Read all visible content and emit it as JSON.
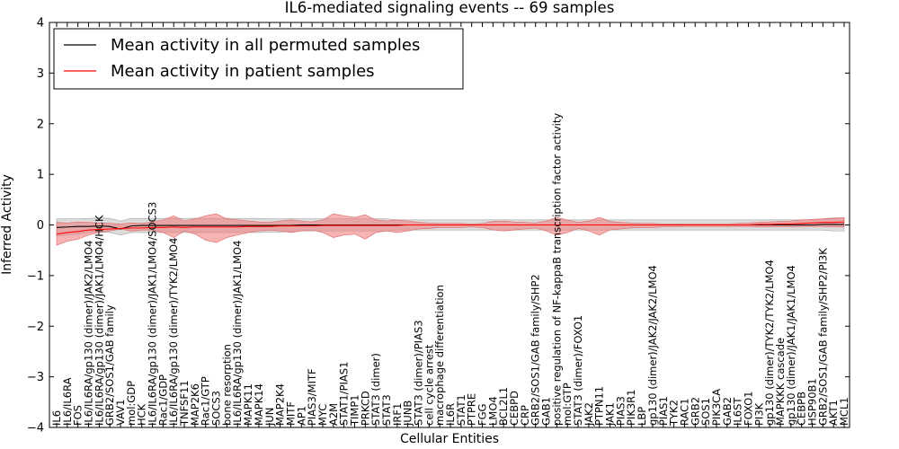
{
  "chart_data": {
    "type": "line",
    "title": "IL6-mediated signaling events -- 69 samples",
    "xlabel": "Cellular Entities",
    "ylabel": "Inferred Activity",
    "ylim": [
      -4,
      4
    ],
    "yticks": [
      -4,
      -3,
      -2,
      -1,
      0,
      1,
      2,
      3,
      4
    ],
    "grid": false,
    "legend_position": "top-left",
    "legend": [
      {
        "label": "Mean activity in all permuted samples",
        "color": "#000000"
      },
      {
        "label": "Mean activity in patient samples",
        "color": "#ff0000"
      }
    ],
    "colors": {
      "permuted_line": "#000000",
      "patient_line": "#ff0000",
      "permuted_band": "#bdbdbd",
      "patient_band": "#f08080"
    },
    "categories": [
      "IL6",
      "IL6/IL6RA",
      "FOS",
      "IL6/IL6RA/gp130 (dimer)/JAK2/LMO4",
      "IL6/IL6RA/gp130 (dimer)/JAK1/LMO4/HCK",
      "GRB2/SOS1/GAB family",
      "VAV1",
      "mol:GDP",
      "HCK",
      "IL6/IL6RA/gp130 (dimer)/JAK1/LMO4/SOCS3",
      "Rac1/GDP",
      "IL6/IL6RA/gp130 (dimer)/TYK2/LMO4",
      "TNFSF11",
      "MAP2K6",
      "Rac1/GTP",
      "SOCS3",
      "bone resorption",
      "IL6/IL6RA/gp130 (dimer)/JAK1/LMO4",
      "MAPK11",
      "MAPK14",
      "JUN",
      "MAP2K4",
      "MITF",
      "AP1",
      "PIAS3/MITF",
      "MYC",
      "A2M",
      "STAT1/PIAS1",
      "TIMP1",
      "PRKCD",
      "STAT3 (dimer)",
      "STAT3",
      "IRF1",
      "JUNB",
      "STAT3 (dimer)/PIAS3",
      "cell cycle arrest",
      "macrophage differentiation",
      "IL6R",
      "STAT1",
      "PTPRE",
      "FGG",
      "LMO4",
      "BCL2L1",
      "CEBPD",
      "CRP",
      "GRB2/SOS1/GAB family/SHP2",
      "GAB1",
      "positive regulation of NF-kappaB transcription factor activity",
      "mol:GTP",
      "STAT3 (dimer)/FOXO1",
      "JAK2",
      "PTPN11",
      "JAK1",
      "PIAS3",
      "PIK3R1",
      "LBP",
      "gp130 (dimer)/JAK2/JAK2/LMO4",
      "PIAS1",
      "TYK2",
      "RAC1",
      "GRB2",
      "SOS1",
      "PIK3CA",
      "GAB2",
      "IL6ST",
      "FOXO1",
      "PI3K",
      "gp130 (dimer)/TYK2/TYK2/LMO4",
      "MAPKKK cascade",
      "gp130 (dimer)/JAK1/JAK1/LMO4",
      "CEBPB",
      "HSP90B1",
      "GRB2/SOS1/GAB family/SHP2/PI3K",
      "AKT1",
      "MCL1"
    ],
    "series": [
      {
        "name": "Mean activity in all permuted samples",
        "values": [
          -0.05,
          -0.04,
          -0.03,
          -0.03,
          -0.02,
          -0.03,
          -0.08,
          -0.02,
          -0.01,
          -0.01,
          -0.01,
          -0.01,
          -0.01,
          -0.01,
          -0.01,
          -0.01,
          -0.01,
          -0.01,
          -0.01,
          -0.01,
          -0.01,
          -0.01,
          -0.01,
          0.0,
          0.0,
          0.0,
          0.0,
          0.0,
          0.0,
          0.0,
          0.0,
          0.0,
          0.0,
          0.0,
          0.0,
          0.0,
          0.0,
          0.0,
          0.0,
          0.0,
          0.0,
          0.0,
          0.0,
          0.0,
          0.0,
          0.0,
          0.0,
          0.0,
          0.0,
          0.0,
          0.0,
          0.0,
          0.0,
          0.0,
          0.0,
          0.0,
          0.0,
          0.0,
          0.0,
          0.0,
          0.0,
          0.0,
          0.0,
          0.0,
          0.0,
          0.0,
          0.0,
          0.0,
          0.0,
          0.0,
          0.0,
          0.0,
          0.01,
          0.01,
          0.01
        ],
        "band_low": [
          -0.22,
          -0.2,
          -0.18,
          -0.15,
          -0.14,
          -0.15,
          -0.2,
          -0.15,
          -0.15,
          -0.15,
          -0.15,
          -0.15,
          -0.15,
          -0.15,
          -0.15,
          -0.15,
          -0.15,
          -0.15,
          -0.15,
          -0.15,
          -0.14,
          -0.14,
          -0.13,
          -0.12,
          -0.12,
          -0.12,
          -0.12,
          -0.12,
          -0.12,
          -0.12,
          -0.12,
          -0.12,
          -0.1,
          -0.1,
          -0.1,
          -0.1,
          -0.1,
          -0.1,
          -0.1,
          -0.1,
          -0.1,
          -0.1,
          -0.1,
          -0.1,
          -0.1,
          -0.1,
          -0.1,
          -0.1,
          -0.1,
          -0.1,
          -0.1,
          -0.1,
          -0.1,
          -0.1,
          -0.1,
          -0.1,
          -0.1,
          -0.1,
          -0.1,
          -0.1,
          -0.1,
          -0.1,
          -0.1,
          -0.1,
          -0.1,
          -0.1,
          -0.1,
          -0.1,
          -0.1,
          -0.1,
          -0.1,
          -0.1,
          -0.1,
          -0.12,
          -0.12
        ],
        "band_high": [
          0.12,
          0.12,
          0.12,
          0.13,
          0.14,
          0.13,
          0.08,
          0.13,
          0.13,
          0.13,
          0.13,
          0.13,
          0.13,
          0.13,
          0.13,
          0.13,
          0.13,
          0.13,
          0.13,
          0.13,
          0.12,
          0.12,
          0.12,
          0.12,
          0.12,
          0.12,
          0.12,
          0.12,
          0.12,
          0.12,
          0.12,
          0.12,
          0.1,
          0.1,
          0.1,
          0.1,
          0.1,
          0.1,
          0.1,
          0.1,
          0.1,
          0.1,
          0.1,
          0.1,
          0.1,
          0.1,
          0.1,
          0.1,
          0.1,
          0.1,
          0.1,
          0.1,
          0.1,
          0.1,
          0.1,
          0.1,
          0.1,
          0.1,
          0.1,
          0.1,
          0.1,
          0.1,
          0.1,
          0.1,
          0.1,
          0.1,
          0.1,
          0.1,
          0.1,
          0.1,
          0.1,
          0.1,
          0.12,
          0.14,
          0.14
        ]
      },
      {
        "name": "Mean activity in patient samples",
        "values": [
          -0.18,
          -0.15,
          -0.13,
          -0.1,
          -0.09,
          -0.08,
          -0.07,
          -0.06,
          -0.06,
          -0.05,
          -0.05,
          -0.04,
          -0.05,
          -0.04,
          -0.04,
          -0.04,
          -0.04,
          -0.04,
          -0.03,
          -0.03,
          -0.03,
          -0.02,
          -0.02,
          -0.02,
          -0.02,
          -0.01,
          -0.01,
          -0.01,
          -0.01,
          -0.01,
          -0.01,
          -0.01,
          -0.01,
          0.0,
          0.0,
          0.0,
          0.0,
          0.0,
          0.0,
          0.0,
          0.0,
          0.0,
          0.0,
          0.0,
          0.0,
          0.0,
          0.0,
          0.0,
          0.0,
          0.0,
          0.0,
          0.0,
          0.0,
          0.0,
          0.0,
          0.0,
          0.0,
          0.0,
          0.0,
          0.0,
          0.0,
          0.0,
          0.0,
          0.0,
          0.0,
          0.0,
          0.01,
          0.01,
          0.02,
          0.02,
          0.03,
          0.04,
          0.05,
          0.05,
          0.06
        ],
        "band_low": [
          -0.4,
          -0.32,
          -0.28,
          -0.2,
          -0.15,
          -0.12,
          -0.08,
          -0.12,
          -0.1,
          -0.1,
          -0.15,
          -0.25,
          -0.12,
          -0.18,
          -0.3,
          -0.35,
          -0.25,
          -0.2,
          -0.15,
          -0.12,
          -0.1,
          -0.12,
          -0.15,
          -0.12,
          -0.1,
          -0.15,
          -0.25,
          -0.2,
          -0.18,
          -0.28,
          -0.15,
          -0.12,
          -0.15,
          -0.12,
          -0.08,
          -0.07,
          -0.05,
          -0.05,
          -0.05,
          -0.04,
          -0.05,
          -0.1,
          -0.12,
          -0.1,
          -0.08,
          -0.06,
          -0.12,
          -0.2,
          -0.15,
          -0.07,
          -0.12,
          -0.2,
          -0.1,
          -0.08,
          -0.06,
          -0.05,
          -0.05,
          -0.04,
          -0.04,
          -0.03,
          -0.03,
          -0.03,
          -0.03,
          -0.03,
          -0.03,
          -0.03,
          -0.04,
          -0.04,
          -0.04,
          -0.04,
          -0.03,
          -0.03,
          -0.03,
          -0.04,
          -0.04
        ],
        "band_high": [
          0.05,
          0.04,
          0.06,
          0.05,
          0.04,
          0.03,
          0.02,
          0.04,
          0.03,
          0.06,
          0.1,
          0.18,
          0.08,
          0.12,
          0.18,
          0.22,
          0.12,
          0.1,
          0.08,
          0.06,
          0.05,
          0.08,
          0.1,
          0.08,
          0.06,
          0.1,
          0.22,
          0.18,
          0.15,
          0.2,
          0.1,
          0.08,
          0.1,
          0.08,
          0.05,
          0.04,
          0.03,
          0.03,
          0.03,
          0.02,
          0.03,
          0.07,
          0.08,
          0.06,
          0.05,
          0.04,
          0.08,
          0.15,
          0.1,
          0.05,
          0.08,
          0.15,
          0.07,
          0.05,
          0.04,
          0.03,
          0.03,
          0.02,
          0.02,
          0.02,
          0.02,
          0.02,
          0.02,
          0.02,
          0.03,
          0.04,
          0.05,
          0.06,
          0.07,
          0.08,
          0.1,
          0.11,
          0.12,
          0.13,
          0.14
        ]
      }
    ]
  }
}
